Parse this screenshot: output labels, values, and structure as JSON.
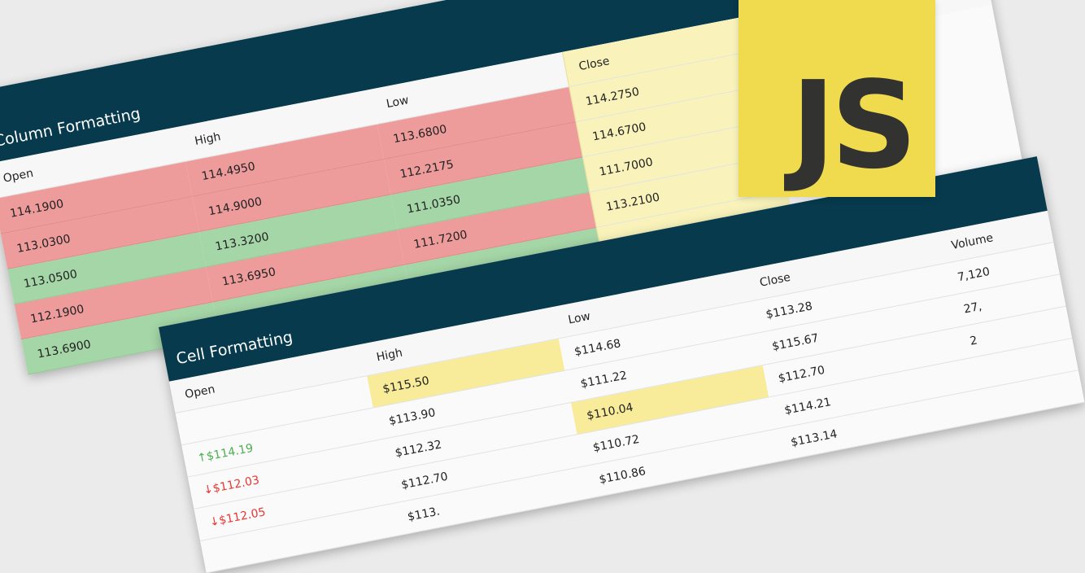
{
  "column_grid": {
    "title": "Column Formatting",
    "columns": [
      "Open",
      "High",
      "Low",
      "Close"
    ],
    "rows": [
      {
        "open": "114.1900",
        "high": "114.4950",
        "low": "113.6800",
        "close": "114.2750",
        "trend": "down"
      },
      {
        "open": "113.0300",
        "high": "114.9000",
        "low": "112.2175",
        "close": "114.6700",
        "trend": "down"
      },
      {
        "open": "113.0500",
        "high": "113.3200",
        "low": "111.0350",
        "close": "111.7000",
        "trend": "up"
      },
      {
        "open": "112.1900",
        "high": "113.6950",
        "low": "111.7200",
        "close": "113.2100",
        "trend": "down"
      },
      {
        "open": "113.6900",
        "high": "",
        "low": "",
        "close": "",
        "trend": "up"
      }
    ]
  },
  "cell_grid": {
    "title": "Cell Formatting",
    "columns": [
      "Open",
      "High",
      "Low",
      "Close",
      "Volume"
    ],
    "rows": [
      {
        "open": "",
        "high": "$115.50",
        "low": "$114.68",
        "close": "$113.28",
        "volume": "7,120"
      },
      {
        "open": "↑$114.19",
        "open_dir": "up",
        "high": "$113.90",
        "low": "$111.22",
        "close": "$115.67",
        "volume": "27,"
      },
      {
        "open": "↓$112.03",
        "open_dir": "down",
        "high": "$112.32",
        "low": "$110.04",
        "close": "$112.70",
        "volume": "2"
      },
      {
        "open": "↓$112.05",
        "open_dir": "down",
        "high": "$112.70",
        "low": "$110.72",
        "close": "$114.21",
        "volume": ""
      },
      {
        "open": "",
        "high": "$113.",
        "low": "$110.86",
        "close": "$113.14",
        "volume": ""
      }
    ],
    "highlights": [
      "high-0",
      "low-2"
    ]
  },
  "logo": {
    "text": "JS"
  }
}
